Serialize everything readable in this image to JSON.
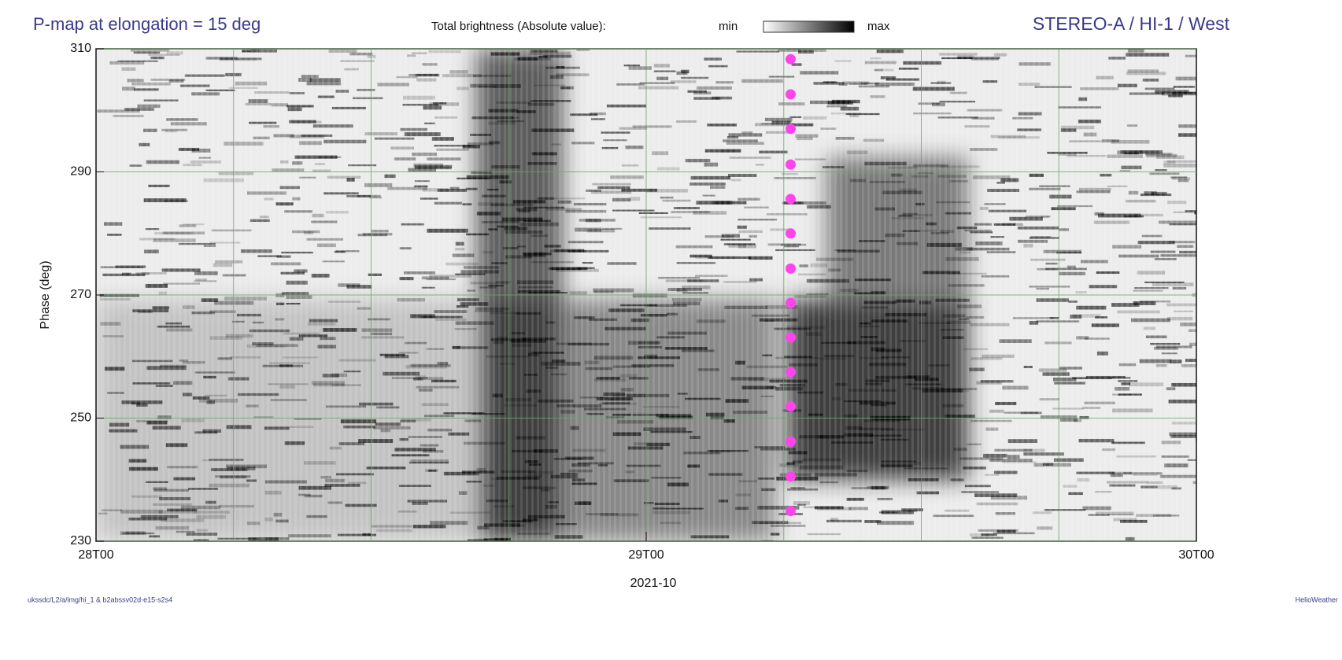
{
  "chart_data": {
    "type": "scatter",
    "title": "P-map at elongation = 15 deg",
    "colorbar_label": "Total brightness (Absolute value):",
    "colorbar_min": "min",
    "colorbar_max": "max",
    "instrument": "STEREO-A / HI-1 / West",
    "xlabel": "2021-10",
    "ylabel": "Phase (deg)",
    "footer_left": "ukssdc/L2/a/img/hi_1 & b2abssv02d-e15-s2s4",
    "footer_right": "HelioWeather",
    "x": [
      30.3,
      30.3,
      30.3,
      30.3,
      30.3,
      30.3,
      30.3,
      30.3,
      30.3,
      30.3,
      30.3,
      30.3,
      30.3,
      30.3
    ],
    "values": [
      308.3,
      302.6,
      297.0,
      291.2,
      285.6,
      280.0,
      274.3,
      268.7,
      263.1,
      257.5,
      251.9,
      246.2,
      240.5,
      234.9
    ],
    "color": "#ff44ee",
    "xlim": [
      0,
      48
    ],
    "ylim": [
      230,
      310
    ],
    "xticks": [
      {
        "value": 0,
        "label": "28T00"
      },
      {
        "value": 24,
        "label": "29T00"
      },
      {
        "value": 48,
        "label": "30T00"
      }
    ],
    "yticks": [
      230,
      250,
      270,
      290,
      310
    ],
    "xgrid": [
      6,
      12,
      18,
      24,
      30,
      36,
      42
    ],
    "grid_color": "#6aa86a"
  }
}
